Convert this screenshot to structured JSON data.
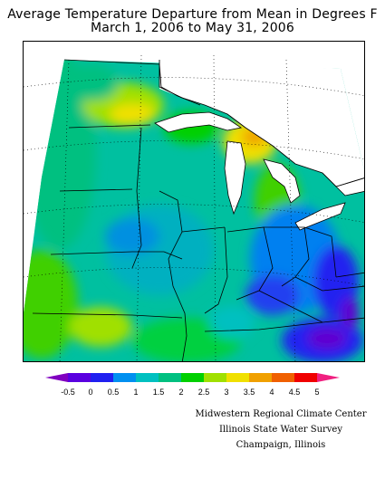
{
  "title": "Average Temperature Departure from Mean in Degrees F",
  "subtitle": "March 1, 2006 to May 31, 2006",
  "legend": {
    "colors": [
      "#8000c0",
      "#5a00e0",
      "#2020f0",
      "#0090f0",
      "#00c0c0",
      "#00c080",
      "#00d000",
      "#a0e000",
      "#f0e000",
      "#f0a000",
      "#f06000",
      "#f00000",
      "#f02080"
    ],
    "tick_labels": [
      "-0.5",
      "0",
      "0.5",
      "1",
      "1.5",
      "2",
      "2.5",
      "3",
      "3.5",
      "4",
      "4.5",
      "5"
    ]
  },
  "credits": {
    "line1": "Midwestern Regional Climate Center",
    "line2": "Illinois State Water Survey",
    "line3": "Champaign, Illinois"
  }
}
